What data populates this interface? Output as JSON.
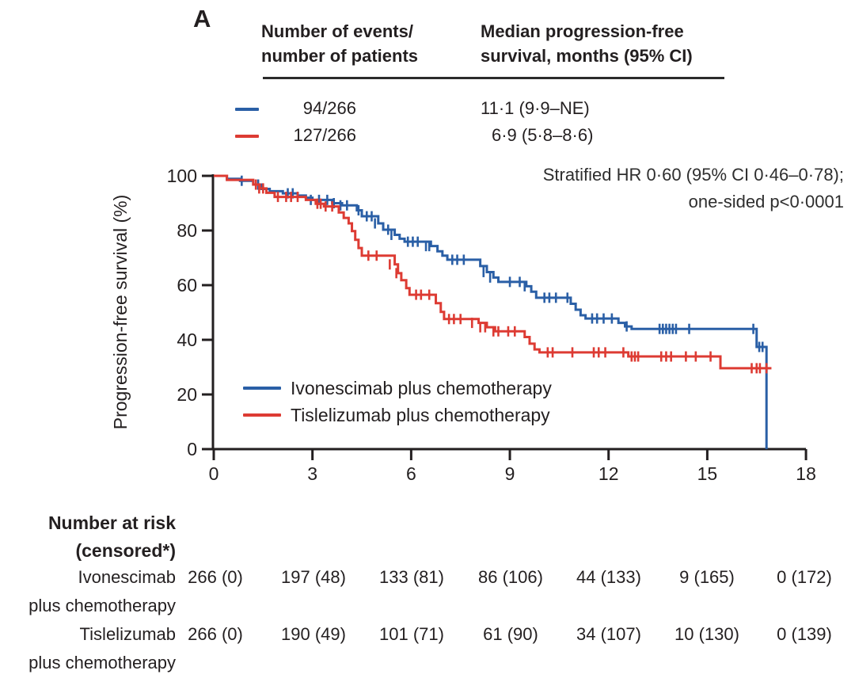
{
  "panel_label": "A",
  "colors": {
    "blue": "#2a5fa6",
    "red": "#dd3b33",
    "axis": "#231f20"
  },
  "summary_table": {
    "col1_header": "Number of events/\nnumber of patients",
    "col2_header": "Median progression-free\nsurvival, months (95% CI)",
    "rows": [
      {
        "group": "Ivonescimab plus chemotherapy",
        "events": "94/266",
        "median": "11·1 (9·9–NE)",
        "color": "#2a5fa6"
      },
      {
        "group": "Tislelizumab plus chemotherapy",
        "events": "127/266",
        "median": "6·9 (5·8–8·6)",
        "color": "#dd3b33"
      }
    ]
  },
  "annotation": {
    "line1": "Stratified HR 0·60 (95% CI 0·46–0·78);",
    "line2": "one-sided p<0·0001"
  },
  "legend": [
    {
      "label": "Ivonescimab plus chemotherapy",
      "color": "#2a5fa6"
    },
    {
      "label": "Tislelizumab plus chemotherapy",
      "color": "#dd3b33"
    }
  ],
  "chart_data": {
    "type": "line",
    "subtype": "kaplan-meier-step",
    "title": "",
    "xlabel": "",
    "ylabel": "Progression-free survival (%)",
    "xlim": [
      0,
      18
    ],
    "ylim": [
      0,
      100
    ],
    "xticks": [
      0,
      3,
      6,
      9,
      12,
      15,
      18
    ],
    "yticks": [
      0,
      20,
      40,
      60,
      80,
      100
    ],
    "grid": false,
    "legend_position": "inside-lower-left",
    "series": [
      {
        "name": "Ivonescimab plus chemotherapy",
        "color": "#2a5fa6",
        "median_months": "11·1 (9·9–NE)",
        "events_patients": "94/266",
        "steps": [
          [
            0,
            100
          ],
          [
            0.4,
            98.9
          ],
          [
            0.8,
            98.2
          ],
          [
            1.2,
            96.8
          ],
          [
            1.45,
            95.2
          ],
          [
            1.7,
            94.4
          ],
          [
            2.1,
            93.6
          ],
          [
            2.55,
            92.8
          ],
          [
            2.8,
            92.0
          ],
          [
            3.0,
            91.2
          ],
          [
            3.6,
            90.0
          ],
          [
            3.9,
            89.2
          ],
          [
            4.35,
            87.4
          ],
          [
            4.5,
            85.2
          ],
          [
            5.0,
            82.6
          ],
          [
            5.15,
            80.3
          ],
          [
            5.5,
            78.4
          ],
          [
            5.65,
            77.0
          ],
          [
            5.8,
            75.9
          ],
          [
            6.6,
            74.3
          ],
          [
            6.8,
            72.4
          ],
          [
            6.95,
            70.8
          ],
          [
            7.1,
            69.3
          ],
          [
            8.1,
            67.0
          ],
          [
            8.3,
            64.8
          ],
          [
            8.5,
            62.8
          ],
          [
            8.65,
            61.2
          ],
          [
            9.5,
            59.6
          ],
          [
            9.65,
            57.6
          ],
          [
            9.8,
            55.4
          ],
          [
            10.85,
            53.2
          ],
          [
            11.0,
            51.0
          ],
          [
            11.15,
            49.0
          ],
          [
            11.3,
            47.8
          ],
          [
            12.3,
            46.2
          ],
          [
            12.5,
            44.9
          ],
          [
            12.7,
            44.0
          ],
          [
            16.5,
            37.4
          ],
          [
            16.8,
            0
          ]
        ],
        "end": null,
        "censors": [
          [
            0.85,
            98.2
          ],
          [
            1.35,
            96.8
          ],
          [
            2.25,
            93.6
          ],
          [
            2.4,
            93.6
          ],
          [
            2.95,
            91.2
          ],
          [
            3.2,
            91.2
          ],
          [
            3.45,
            91.2
          ],
          [
            3.65,
            90.0
          ],
          [
            3.85,
            89.2
          ],
          [
            4.05,
            89.2
          ],
          [
            4.4,
            87.4
          ],
          [
            4.65,
            85.2
          ],
          [
            4.8,
            85.2
          ],
          [
            4.9,
            82.6
          ],
          [
            5.3,
            80.3
          ],
          [
            5.4,
            78.4
          ],
          [
            5.9,
            75.9
          ],
          [
            6.05,
            75.9
          ],
          [
            6.2,
            75.9
          ],
          [
            6.45,
            74.3
          ],
          [
            6.55,
            74.3
          ],
          [
            7.25,
            69.3
          ],
          [
            7.4,
            69.3
          ],
          [
            7.6,
            69.3
          ],
          [
            8.2,
            64.8
          ],
          [
            8.4,
            62.8
          ],
          [
            9.0,
            61.2
          ],
          [
            9.3,
            61.2
          ],
          [
            9.45,
            59.6
          ],
          [
            10.05,
            55.4
          ],
          [
            10.2,
            55.4
          ],
          [
            10.4,
            55.4
          ],
          [
            10.75,
            55.4
          ],
          [
            11.5,
            47.8
          ],
          [
            11.65,
            47.8
          ],
          [
            11.85,
            47.8
          ],
          [
            12.1,
            47.8
          ],
          [
            12.55,
            44.9
          ],
          [
            13.55,
            44
          ],
          [
            13.65,
            44
          ],
          [
            13.75,
            44
          ],
          [
            13.85,
            44
          ],
          [
            13.95,
            44
          ],
          [
            14.05,
            44
          ],
          [
            14.45,
            44
          ],
          [
            16.4,
            44
          ],
          [
            16.58,
            37.4
          ],
          [
            16.68,
            37.4
          ]
        ]
      },
      {
        "name": "Tislelizumab plus chemotherapy",
        "color": "#dd3b33",
        "median_months": "6·9 (5·8–8·6)",
        "events_patients": "127/266",
        "steps": [
          [
            0,
            100
          ],
          [
            0.4,
            98.5
          ],
          [
            1.2,
            96.8
          ],
          [
            1.4,
            95.4
          ],
          [
            1.6,
            93.8
          ],
          [
            1.85,
            92.3
          ],
          [
            2.8,
            91.2
          ],
          [
            3.1,
            89.8
          ],
          [
            3.35,
            88.8
          ],
          [
            3.8,
            86.6
          ],
          [
            3.95,
            84.6
          ],
          [
            4.1,
            82.6
          ],
          [
            4.2,
            79.8
          ],
          [
            4.3,
            76.6
          ],
          [
            4.4,
            73.6
          ],
          [
            4.5,
            70.8
          ],
          [
            5.5,
            67.6
          ],
          [
            5.6,
            64.4
          ],
          [
            5.7,
            61.8
          ],
          [
            5.85,
            58.9
          ],
          [
            5.95,
            56.5
          ],
          [
            6.75,
            53.4
          ],
          [
            6.9,
            50.2
          ],
          [
            7.0,
            47.6
          ],
          [
            8.05,
            46.2
          ],
          [
            8.3,
            44.6
          ],
          [
            8.55,
            43.1
          ],
          [
            9.45,
            41.0
          ],
          [
            9.6,
            38.6
          ],
          [
            9.75,
            36.5
          ],
          [
            9.9,
            35.4
          ],
          [
            12.6,
            33.9
          ],
          [
            15.4,
            29.6
          ]
        ],
        "end": 16.95,
        "censors": [
          [
            1.28,
            96.8
          ],
          [
            1.38,
            95.4
          ],
          [
            1.5,
            95.4
          ],
          [
            1.95,
            92.3
          ],
          [
            2.2,
            92.3
          ],
          [
            2.35,
            92.3
          ],
          [
            2.55,
            92.3
          ],
          [
            3.15,
            89.8
          ],
          [
            3.25,
            89.8
          ],
          [
            3.4,
            88.8
          ],
          [
            3.6,
            88.8
          ],
          [
            4.7,
            70.8
          ],
          [
            4.95,
            70.8
          ],
          [
            5.35,
            67.6
          ],
          [
            5.55,
            64.4
          ],
          [
            6.15,
            56.5
          ],
          [
            6.3,
            56.5
          ],
          [
            6.55,
            56.5
          ],
          [
            7.15,
            47.6
          ],
          [
            7.3,
            47.6
          ],
          [
            7.5,
            47.6
          ],
          [
            7.85,
            46.2
          ],
          [
            8.1,
            44.6
          ],
          [
            8.25,
            44.6
          ],
          [
            8.5,
            43.1
          ],
          [
            8.65,
            43.1
          ],
          [
            8.95,
            43.1
          ],
          [
            9.15,
            43.1
          ],
          [
            10.15,
            35.4
          ],
          [
            10.3,
            35.4
          ],
          [
            10.9,
            35.4
          ],
          [
            11.55,
            35.4
          ],
          [
            11.7,
            35.4
          ],
          [
            11.9,
            35.4
          ],
          [
            12.45,
            35.4
          ],
          [
            12.7,
            33.9
          ],
          [
            12.8,
            33.9
          ],
          [
            12.9,
            33.9
          ],
          [
            13.6,
            33.9
          ],
          [
            13.75,
            33.9
          ],
          [
            13.9,
            33.9
          ],
          [
            14.35,
            33.9
          ],
          [
            14.65,
            33.9
          ],
          [
            15.1,
            33.9
          ],
          [
            16.35,
            29.6
          ],
          [
            16.5,
            29.6
          ],
          [
            16.6,
            29.6
          ],
          [
            16.8,
            29.6
          ]
        ]
      }
    ]
  },
  "at_risk": {
    "title_line1": "Number at risk",
    "title_line2": "(censored*)",
    "times": [
      0,
      3,
      6,
      9,
      12,
      15,
      18
    ],
    "groups": [
      {
        "label_line1": "Ivonescimab",
        "label_line2": "plus chemotherapy",
        "values": [
          "266 (0)",
          "197 (48)",
          "133 (81)",
          "86 (106)",
          "44 (133)",
          "9 (165)",
          "0 (172)"
        ]
      },
      {
        "label_line1": "Tislelizumab",
        "label_line2": "plus chemotherapy",
        "values": [
          "266 (0)",
          "190 (49)",
          "101 (71)",
          "61 (90)",
          "34 (107)",
          "10 (130)",
          "0 (139)"
        ]
      }
    ]
  }
}
